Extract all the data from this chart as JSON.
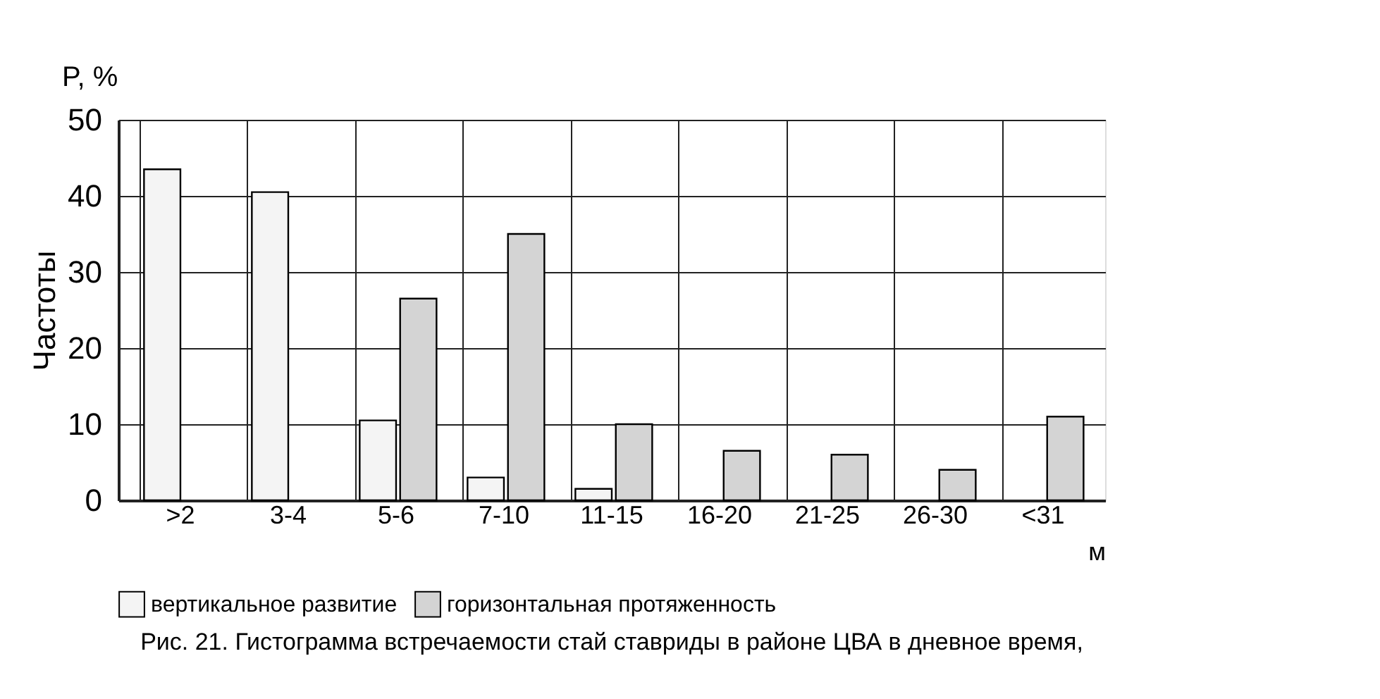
{
  "chart_data": {
    "type": "bar",
    "title": "Рис. 21. Гистограмма встречаемости стай ставриды в районе ЦВА в дневное время,",
    "ylabel": "Частоты",
    "xlabel": "м",
    "annotations": [
      "P, %"
    ],
    "categories": [
      ">2",
      "3-4",
      "5-6",
      "7-10",
      "11-15",
      "16-20",
      "21-25",
      "26-30",
      "<31"
    ],
    "series": [
      {
        "name": "вертикальное развитие",
        "color": "#f4f4f4",
        "values": [
          43.5,
          40.5,
          10.5,
          3,
          1.5,
          null,
          null,
          null,
          null
        ]
      },
      {
        "name": "горизонтальная протяженность",
        "color": "#d4d4d4",
        "values": [
          null,
          null,
          26.5,
          35,
          10,
          6.5,
          6,
          4,
          11
        ]
      }
    ],
    "ylim": [
      0,
      50
    ],
    "yticks": [
      0,
      10,
      20,
      30,
      40,
      50
    ],
    "grid": true,
    "legend": "bottom"
  }
}
